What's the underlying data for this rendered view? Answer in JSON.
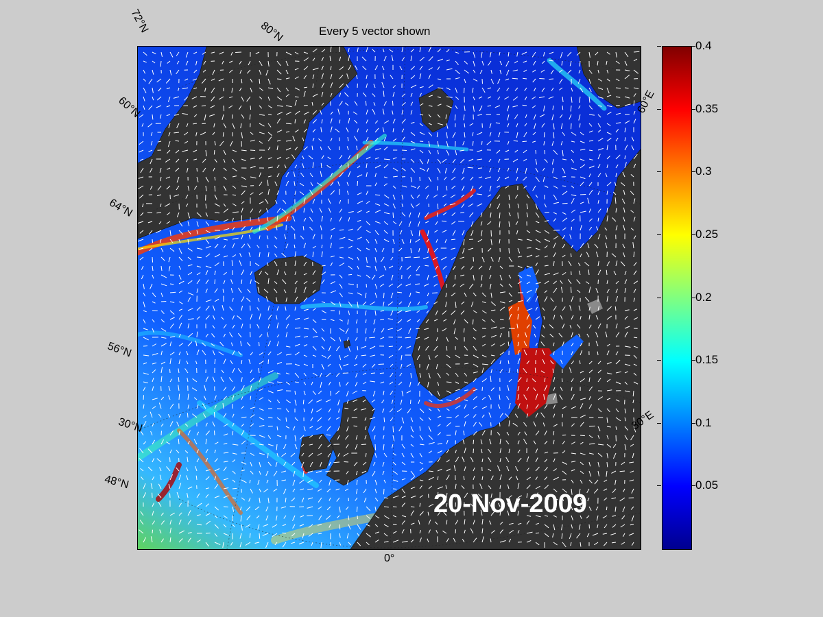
{
  "title": "Every 5 vector shown",
  "date_label": "20-Nov-2009",
  "latitude_labels": [
    "72°N",
    "60°N",
    "64°N",
    "56°N",
    "30°N",
    "48°N"
  ],
  "other_labels": {
    "top": "80°N",
    "bottom_lon": "0°",
    "east_top": "60°E",
    "east_mid": "30°E"
  },
  "colorbar": {
    "colormap": "jet",
    "min": 0,
    "max": 0.4,
    "ticks": [
      "0.4",
      "0.35",
      "0.3",
      "0.25",
      "0.2",
      "0.15",
      "0.1",
      "0.05"
    ]
  },
  "colors": {
    "background": "#cccccc",
    "land": "#333333",
    "low": "#0000ff",
    "high": "#800000",
    "vectors": "#ffffff"
  },
  "chart_data": {
    "type": "heatmap",
    "title": "Every 5 vector shown",
    "annotation": "20-Nov-2009",
    "colorbar_range": [
      0,
      0.4
    ],
    "colorbar_ticks": [
      0.05,
      0.1,
      0.15,
      0.2,
      0.25,
      0.3,
      0.35,
      0.4
    ]
  }
}
